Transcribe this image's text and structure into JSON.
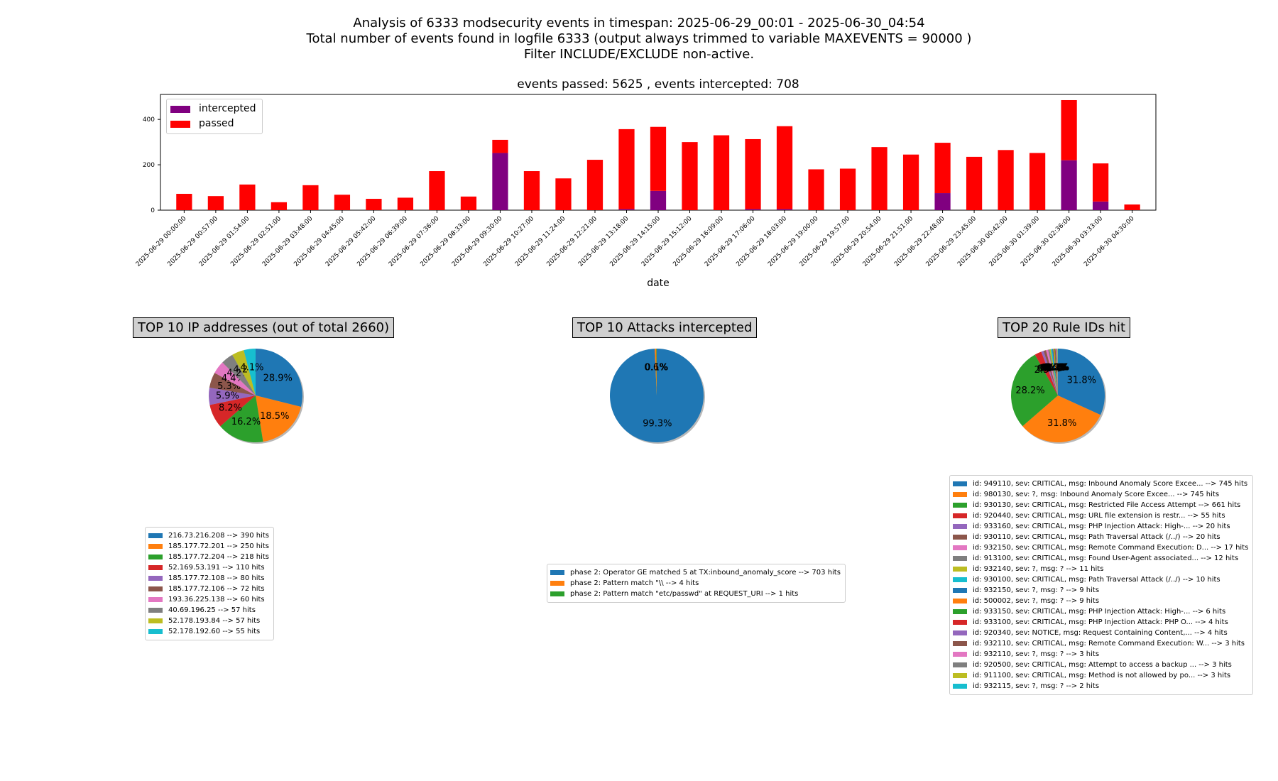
{
  "header": {
    "line1": "Analysis of 6333 modsecurity events in timespan: 2025-06-29_00:01 - 2025-06-30_04:54",
    "line2": "Total number of events found in logfile 6333 (output always trimmed to variable MAXEVENTS = 90000 )",
    "line3": "Filter INCLUDE/EXCLUDE non-active."
  },
  "chart_data": [
    {
      "type": "bar",
      "stacked": true,
      "title": "events passed: 5625 , events intercepted: 708",
      "xlabel": "date",
      "ylabel": "",
      "ylim": [
        0,
        510
      ],
      "yticks": [
        0,
        200,
        400
      ],
      "legend_position": "top-left",
      "categories": [
        "2025-06-29 00:00:00",
        "2025-06-29 00:57:00",
        "2025-06-29 01:54:00",
        "2025-06-29 02:51:00",
        "2025-06-29 03:48:00",
        "2025-06-29 04:45:00",
        "2025-06-29 05:42:00",
        "2025-06-29 06:39:00",
        "2025-06-29 07:36:00",
        "2025-06-29 08:33:00",
        "2025-06-29 09:30:00",
        "2025-06-29 10:27:00",
        "2025-06-29 11:24:00",
        "2025-06-29 12:21:00",
        "2025-06-29 13:18:00",
        "2025-06-29 14:15:00",
        "2025-06-29 15:12:00",
        "2025-06-29 16:09:00",
        "2025-06-29 17:06:00",
        "2025-06-29 18:03:00",
        "2025-06-29 19:00:00",
        "2025-06-29 19:57:00",
        "2025-06-29 20:54:00",
        "2025-06-29 21:51:00",
        "2025-06-29 22:48:00",
        "2025-06-29 23:45:00",
        "2025-06-30 00:42:00",
        "2025-06-30 01:39:00",
        "2025-06-30 02:36:00",
        "2025-06-30 03:33:00",
        "2025-06-30 04:30:00"
      ],
      "series": [
        {
          "name": "intercepted",
          "color": "#800080",
          "values": [
            0,
            0,
            0,
            0,
            0,
            0,
            0,
            0,
            0,
            0,
            252,
            0,
            0,
            0,
            5,
            85,
            0,
            0,
            5,
            5,
            0,
            0,
            0,
            0,
            75,
            0,
            0,
            0,
            220,
            38,
            0
          ]
        },
        {
          "name": "passed",
          "color": "#ff0000",
          "values": [
            72,
            62,
            113,
            35,
            110,
            68,
            50,
            55,
            172,
            60,
            58,
            172,
            140,
            222,
            352,
            282,
            300,
            330,
            308,
            365,
            180,
            183,
            278,
            245,
            222,
            235,
            265,
            252,
            265,
            168,
            25
          ]
        }
      ]
    },
    {
      "type": "pie",
      "title": "TOP 10 IP addresses (out of total 2660)",
      "labels": [
        "216.73.216.208 --> 390 hits",
        "185.177.72.201 --> 250 hits",
        "185.177.72.204 --> 218 hits",
        "52.169.53.191 --> 110 hits",
        "185.177.72.108 --> 80 hits",
        "185.177.72.106 --> 72 hits",
        "193.36.225.138 --> 60 hits",
        "40.69.196.25 --> 57 hits",
        "52.178.193.84 --> 57 hits",
        "52.178.192.60 --> 55 hits"
      ],
      "values": [
        390,
        250,
        218,
        110,
        80,
        72,
        60,
        57,
        57,
        55
      ],
      "pct_labels": [
        "28.9%",
        "18.5%",
        "16.2%",
        "8.2%",
        "5.9%",
        "5.3%",
        "4.4%",
        "4.2%",
        "4.2%",
        "4.1%"
      ],
      "colors": [
        "#1f77b4",
        "#ff7f0e",
        "#2ca02c",
        "#d62728",
        "#9467bd",
        "#8c564b",
        "#e377c2",
        "#7f7f7f",
        "#bcbd22",
        "#17becf"
      ]
    },
    {
      "type": "pie",
      "title": "TOP 10 Attacks intercepted",
      "labels": [
        "phase 2: Operator GE matched 5 at TX:inbound_anomaly_score --> 703 hits",
        "phase 2: Pattern match \"\\\\ --> 4 hits",
        "phase 2: Pattern match \"etc/passwd\" at REQUEST_URI --> 1 hits"
      ],
      "values": [
        703,
        4,
        1
      ],
      "pct_labels": [
        "99.3%",
        "0.6%",
        "0.1%"
      ],
      "colors": [
        "#1f77b4",
        "#ff7f0e",
        "#2ca02c"
      ]
    },
    {
      "type": "pie",
      "title": "TOP 20 Rule IDs hit",
      "labels": [
        "id: 949110, sev: CRITICAL, msg: Inbound Anomaly Score Excee... --> 745 hits",
        "id: 980130, sev: ?, msg: Inbound Anomaly Score Excee... --> 745 hits",
        "id: 930130, sev: CRITICAL, msg: Restricted File Access Attempt --> 661 hits",
        "id: 920440, sev: CRITICAL, msg: URL file extension is restr... --> 55 hits",
        "id: 933160, sev: CRITICAL, msg: PHP Injection Attack: High-... --> 20 hits",
        "id: 930110, sev: CRITICAL, msg: Path Traversal Attack (/../) --> 20 hits",
        "id: 932150, sev: CRITICAL, msg: Remote Command Execution: D... --> 17 hits",
        "id: 913100, sev: CRITICAL, msg: Found User-Agent associated... --> 12 hits",
        "id: 932140, sev: ?, msg: ? --> 11 hits",
        "id: 930100, sev: CRITICAL, msg: Path Traversal Attack (/../) --> 10 hits",
        "id: 932150, sev: ?, msg: ? --> 9 hits",
        "id: 500002, sev: ?, msg: ? --> 9 hits",
        "id: 933150, sev: CRITICAL, msg: PHP Injection Attack: High-... --> 6 hits",
        "id: 933100, sev: CRITICAL, msg: PHP Injection Attack: PHP O... --> 4 hits",
        "id: 920340, sev: NOTICE, msg: Request Containing Content,... --> 4 hits",
        "id: 932110, sev: CRITICAL, msg: Remote Command Execution: W... --> 3 hits",
        "id: 932110, sev: ?, msg: ? --> 3 hits",
        "id: 920500, sev: CRITICAL, msg: Attempt to access a backup ... --> 3 hits",
        "id: 911100, sev: CRITICAL, msg: Method is not allowed by po... --> 3 hits",
        "id: 932115, sev: ?, msg: ? --> 2 hits"
      ],
      "values": [
        745,
        745,
        661,
        55,
        20,
        20,
        17,
        12,
        11,
        10,
        9,
        9,
        6,
        4,
        4,
        3,
        3,
        3,
        3,
        2
      ],
      "pct_labels": [
        "31.8%",
        "31.8%",
        "28.2%",
        "2.3%",
        "0.9%",
        "0.9%",
        "0.7%",
        "0.5%",
        "0.5%",
        "0.4%",
        "0.4%",
        "0.4%",
        "0.3%",
        "0.2%",
        "0.2%",
        "0.1%",
        "0.1%",
        "0.1%",
        "0.1%",
        "0.1%"
      ],
      "colors": [
        "#1f77b4",
        "#ff7f0e",
        "#2ca02c",
        "#d62728",
        "#9467bd",
        "#8c564b",
        "#e377c2",
        "#7f7f7f",
        "#bcbd22",
        "#17becf",
        "#1f77b4",
        "#ff7f0e",
        "#2ca02c",
        "#d62728",
        "#9467bd",
        "#8c564b",
        "#e377c2",
        "#7f7f7f",
        "#bcbd22",
        "#17becf"
      ]
    }
  ]
}
